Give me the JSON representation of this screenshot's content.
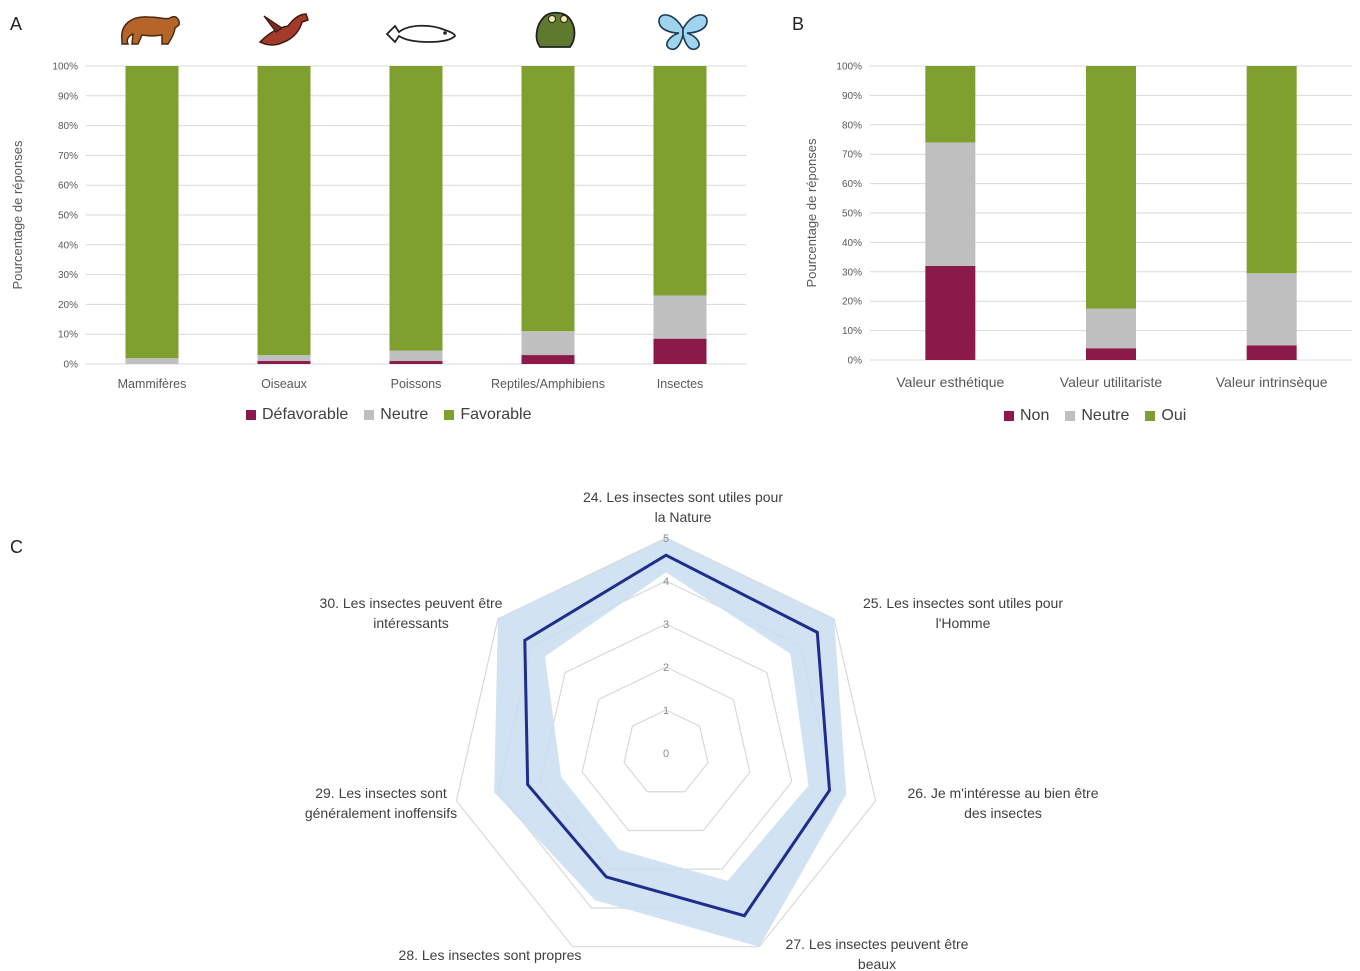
{
  "panels": {
    "a": "A",
    "b": "B",
    "c": "C"
  },
  "colors": {
    "defavorable": "#8B1A4A",
    "neutre": "#BFBFBF",
    "favorable": "#7F9F2E",
    "grid": "#D9D9D9",
    "radar_line": "#1F2E8C",
    "radar_band": "#C9DDF0"
  },
  "icons": [
    "bear-icon",
    "bird-icon",
    "fish-icon",
    "frog-icon",
    "butterfly-icon"
  ],
  "chart_data": [
    {
      "type": "bar",
      "stacked": true,
      "ylabel": "Pourcentage de réponses",
      "yticks": [
        "0%",
        "10%",
        "20%",
        "30%",
        "40%",
        "50%",
        "60%",
        "70%",
        "80%",
        "90%",
        "100%"
      ],
      "ylim": [
        0,
        100
      ],
      "categories": [
        "Mammifères",
        "Oiseaux",
        "Poissons",
        "Reptiles/Amphibiens",
        "Insectes"
      ],
      "series": [
        {
          "name": "Défavorable",
          "values": [
            0,
            1,
            1,
            3,
            8.5
          ]
        },
        {
          "name": "Neutre",
          "values": [
            2,
            2,
            3.5,
            8,
            14.5
          ]
        },
        {
          "name": "Favorable",
          "values": [
            98,
            97,
            95.5,
            89,
            77
          ]
        }
      ],
      "legend": "bottom",
      "grid": true
    },
    {
      "type": "bar",
      "stacked": true,
      "ylabel": "Pourcentage de réponses",
      "yticks": [
        "0%",
        "10%",
        "20%",
        "30%",
        "40%",
        "50%",
        "60%",
        "70%",
        "80%",
        "90%",
        "100%"
      ],
      "ylim": [
        0,
        100
      ],
      "categories": [
        "Valeur esthétique",
        "Valeur utilitariste",
        "Valeur intrinsèque"
      ],
      "series": [
        {
          "name": "Non",
          "values": [
            32,
            4,
            5
          ]
        },
        {
          "name": "Neutre",
          "values": [
            42,
            13.5,
            24.5
          ]
        },
        {
          "name": "Oui",
          "values": [
            26,
            82.5,
            70.5
          ]
        }
      ],
      "legend": "bottom",
      "grid": true
    },
    {
      "type": "radar",
      "rticks": [
        "0",
        "1",
        "2",
        "3",
        "4",
        "5"
      ],
      "rlim": [
        0,
        5
      ],
      "axes": [
        [
          "24. Les insectes sont utiles pour",
          "la Nature"
        ],
        [
          "25. Les insectes sont utiles pour",
          "l'Homme"
        ],
        [
          "26. Je m'intéresse au bien être",
          "des insectes"
        ],
        [
          "27. Les insectes peuvent être",
          "beaux"
        ],
        [
          "28. Les insectes sont propres"
        ],
        [
          "29. Les insectes sont",
          "généralement inoffensifs"
        ],
        [
          "30. Les insectes peuvent être",
          "intéressants"
        ]
      ],
      "mean": [
        4.6,
        4.5,
        3.9,
        4.2,
        3.2,
        3.3,
        4.2
      ],
      "band_low": [
        4.2,
        3.7,
        3.4,
        3.3,
        2.5,
        2.5,
        3.6
      ],
      "band_high": [
        5.0,
        5.0,
        4.3,
        5.0,
        3.8,
        4.1,
        5.0
      ]
    }
  ]
}
